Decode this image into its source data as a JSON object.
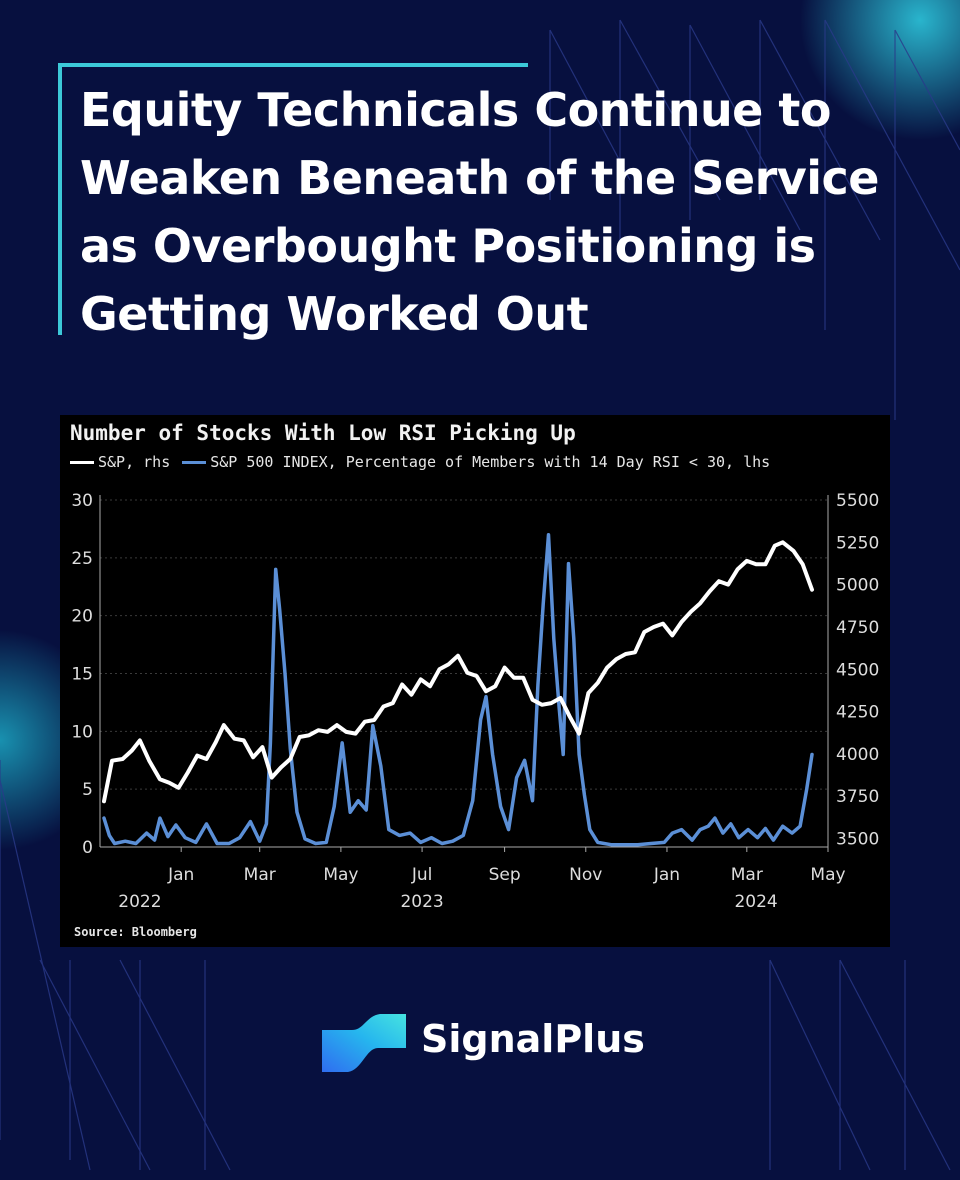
{
  "headline": "Equity Technicals Continue to Weaken Beneath of the Service as Overbought Positioning is Getting Worked Out",
  "brand": {
    "name": "SignalPlus",
    "logo_icon": "signalplus-wave-logo"
  },
  "colors": {
    "background": "#07103f",
    "accent": "#3cc9d8",
    "series_white": "#ffffff",
    "series_blue": "#5b8fd6"
  },
  "chart_data": {
    "type": "line",
    "title": "Number of Stocks With Low RSI Picking Up",
    "source": "Source: Bloomberg",
    "legend_placement": "top-left",
    "x_tick_labels": [
      "Jan",
      "Mar",
      "May",
      "Jul",
      "Sep",
      "Nov",
      "Jan",
      "Mar",
      "May"
    ],
    "x_tick_dates": [
      "2023-01-01",
      "2023-03-01",
      "2023-05-01",
      "2023-07-01",
      "2023-09-01",
      "2023-11-01",
      "2024-01-01",
      "2024-03-01",
      "2024-05-01"
    ],
    "year_labels": [
      {
        "label": "2022",
        "date": "2022-12-01"
      },
      {
        "label": "2023",
        "date": "2023-07-01"
      },
      {
        "label": "2024",
        "date": "2024-03-08"
      }
    ],
    "x_range": [
      "2022-11-01",
      "2024-05-01"
    ],
    "y_left": {
      "range": [
        0,
        30
      ],
      "ticks": [
        "0",
        "5",
        "10",
        "15",
        "20",
        "25",
        "30"
      ]
    },
    "y_right": {
      "range": [
        3450,
        5500
      ],
      "ticks": [
        "3500",
        "3750",
        "4000",
        "4250",
        "4500",
        "4750",
        "5000",
        "5250",
        "5500"
      ]
    },
    "series": [
      {
        "name": "S&P, rhs",
        "axis": "right",
        "color": "#ffffff",
        "points": [
          [
            "2022-11-04",
            3720
          ],
          [
            "2022-11-10",
            3960
          ],
          [
            "2022-11-18",
            3970
          ],
          [
            "2022-11-25",
            4020
          ],
          [
            "2022-12-01",
            4080
          ],
          [
            "2022-12-08",
            3960
          ],
          [
            "2022-12-16",
            3850
          ],
          [
            "2022-12-23",
            3830
          ],
          [
            "2022-12-30",
            3800
          ],
          [
            "2023-01-06",
            3890
          ],
          [
            "2023-01-13",
            3990
          ],
          [
            "2023-01-20",
            3970
          ],
          [
            "2023-01-27",
            4070
          ],
          [
            "2023-02-02",
            4170
          ],
          [
            "2023-02-10",
            4090
          ],
          [
            "2023-02-17",
            4080
          ],
          [
            "2023-02-24",
            3980
          ],
          [
            "2023-03-03",
            4040
          ],
          [
            "2023-03-10",
            3860
          ],
          [
            "2023-03-17",
            3920
          ],
          [
            "2023-03-24",
            3970
          ],
          [
            "2023-03-31",
            4100
          ],
          [
            "2023-04-07",
            4110
          ],
          [
            "2023-04-14",
            4140
          ],
          [
            "2023-04-21",
            4130
          ],
          [
            "2023-04-28",
            4170
          ],
          [
            "2023-05-05",
            4130
          ],
          [
            "2023-05-12",
            4120
          ],
          [
            "2023-05-19",
            4190
          ],
          [
            "2023-05-26",
            4200
          ],
          [
            "2023-06-02",
            4280
          ],
          [
            "2023-06-09",
            4300
          ],
          [
            "2023-06-16",
            4410
          ],
          [
            "2023-06-23",
            4350
          ],
          [
            "2023-06-30",
            4440
          ],
          [
            "2023-07-07",
            4400
          ],
          [
            "2023-07-14",
            4500
          ],
          [
            "2023-07-21",
            4530
          ],
          [
            "2023-07-28",
            4580
          ],
          [
            "2023-08-04",
            4480
          ],
          [
            "2023-08-11",
            4460
          ],
          [
            "2023-08-18",
            4370
          ],
          [
            "2023-08-25",
            4400
          ],
          [
            "2023-09-01",
            4510
          ],
          [
            "2023-09-08",
            4450
          ],
          [
            "2023-09-15",
            4450
          ],
          [
            "2023-09-22",
            4320
          ],
          [
            "2023-09-29",
            4290
          ],
          [
            "2023-10-06",
            4300
          ],
          [
            "2023-10-13",
            4330
          ],
          [
            "2023-10-20",
            4220
          ],
          [
            "2023-10-27",
            4120
          ],
          [
            "2023-11-03",
            4360
          ],
          [
            "2023-11-10",
            4420
          ],
          [
            "2023-11-17",
            4510
          ],
          [
            "2023-11-24",
            4560
          ],
          [
            "2023-12-01",
            4590
          ],
          [
            "2023-12-08",
            4600
          ],
          [
            "2023-12-15",
            4720
          ],
          [
            "2023-12-22",
            4750
          ],
          [
            "2023-12-29",
            4770
          ],
          [
            "2024-01-05",
            4700
          ],
          [
            "2024-01-12",
            4780
          ],
          [
            "2024-01-19",
            4840
          ],
          [
            "2024-01-26",
            4890
          ],
          [
            "2024-02-02",
            4960
          ],
          [
            "2024-02-09",
            5020
          ],
          [
            "2024-02-16",
            5000
          ],
          [
            "2024-02-23",
            5090
          ],
          [
            "2024-03-01",
            5140
          ],
          [
            "2024-03-08",
            5120
          ],
          [
            "2024-03-15",
            5120
          ],
          [
            "2024-03-22",
            5230
          ],
          [
            "2024-03-28",
            5250
          ],
          [
            "2024-04-05",
            5200
          ],
          [
            "2024-04-12",
            5120
          ],
          [
            "2024-04-19",
            4970
          ]
        ]
      },
      {
        "name": "S&P 500 INDEX, Percentage of Members with 14 Day RSI < 30, lhs",
        "axis": "left",
        "color": "#5b8fd6",
        "points": [
          [
            "2022-11-04",
            2.5
          ],
          [
            "2022-11-08",
            1.0
          ],
          [
            "2022-11-12",
            0.3
          ],
          [
            "2022-11-20",
            0.5
          ],
          [
            "2022-11-28",
            0.3
          ],
          [
            "2022-12-06",
            1.2
          ],
          [
            "2022-12-12",
            0.6
          ],
          [
            "2022-12-16",
            2.5
          ],
          [
            "2022-12-22",
            0.9
          ],
          [
            "2022-12-28",
            1.9
          ],
          [
            "2023-01-04",
            0.8
          ],
          [
            "2023-01-12",
            0.4
          ],
          [
            "2023-01-20",
            2.0
          ],
          [
            "2023-01-28",
            0.3
          ],
          [
            "2023-02-06",
            0.3
          ],
          [
            "2023-02-14",
            0.8
          ],
          [
            "2023-02-22",
            2.2
          ],
          [
            "2023-03-01",
            0.5
          ],
          [
            "2023-03-06",
            2.0
          ],
          [
            "2023-03-09",
            9.0
          ],
          [
            "2023-03-13",
            24.0
          ],
          [
            "2023-03-16",
            20.5
          ],
          [
            "2023-03-20",
            15.0
          ],
          [
            "2023-03-24",
            8.5
          ],
          [
            "2023-03-29",
            3.0
          ],
          [
            "2023-04-04",
            0.7
          ],
          [
            "2023-04-12",
            0.3
          ],
          [
            "2023-04-20",
            0.4
          ],
          [
            "2023-04-26",
            3.5
          ],
          [
            "2023-05-02",
            9.0
          ],
          [
            "2023-05-08",
            3.0
          ],
          [
            "2023-05-14",
            4.0
          ],
          [
            "2023-05-20",
            3.2
          ],
          [
            "2023-05-25",
            10.5
          ],
          [
            "2023-05-31",
            7.0
          ],
          [
            "2023-06-06",
            1.5
          ],
          [
            "2023-06-14",
            1.0
          ],
          [
            "2023-06-22",
            1.2
          ],
          [
            "2023-06-30",
            0.4
          ],
          [
            "2023-07-08",
            0.8
          ],
          [
            "2023-07-16",
            0.3
          ],
          [
            "2023-07-24",
            0.5
          ],
          [
            "2023-08-01",
            1.0
          ],
          [
            "2023-08-08",
            4.0
          ],
          [
            "2023-08-14",
            11.0
          ],
          [
            "2023-08-18",
            13.0
          ],
          [
            "2023-08-23",
            8.0
          ],
          [
            "2023-08-29",
            3.5
          ],
          [
            "2023-09-04",
            1.5
          ],
          [
            "2023-09-10",
            6.0
          ],
          [
            "2023-09-16",
            7.5
          ],
          [
            "2023-09-22",
            4.0
          ],
          [
            "2023-09-26",
            14.0
          ],
          [
            "2023-09-30",
            21.0
          ],
          [
            "2023-10-04",
            27.0
          ],
          [
            "2023-10-08",
            18.0
          ],
          [
            "2023-10-12",
            12.0
          ],
          [
            "2023-10-15",
            8.0
          ],
          [
            "2023-10-19",
            24.5
          ],
          [
            "2023-10-23",
            18.0
          ],
          [
            "2023-10-27",
            8.0
          ],
          [
            "2023-10-31",
            4.5
          ],
          [
            "2023-11-04",
            1.5
          ],
          [
            "2023-11-10",
            0.4
          ],
          [
            "2023-11-20",
            0.2
          ],
          [
            "2023-12-01",
            0.2
          ],
          [
            "2023-12-10",
            0.2
          ],
          [
            "2023-12-20",
            0.3
          ],
          [
            "2023-12-30",
            0.4
          ],
          [
            "2024-01-05",
            1.2
          ],
          [
            "2024-01-12",
            1.5
          ],
          [
            "2024-01-20",
            0.6
          ],
          [
            "2024-01-26",
            1.5
          ],
          [
            "2024-02-01",
            1.8
          ],
          [
            "2024-02-06",
            2.5
          ],
          [
            "2024-02-12",
            1.2
          ],
          [
            "2024-02-18",
            2.0
          ],
          [
            "2024-02-24",
            0.8
          ],
          [
            "2024-03-02",
            1.5
          ],
          [
            "2024-03-09",
            0.8
          ],
          [
            "2024-03-15",
            1.6
          ],
          [
            "2024-03-21",
            0.6
          ],
          [
            "2024-03-28",
            1.8
          ],
          [
            "2024-04-04",
            1.2
          ],
          [
            "2024-04-10",
            1.8
          ],
          [
            "2024-04-15",
            5.0
          ],
          [
            "2024-04-19",
            8.0
          ]
        ]
      }
    ]
  }
}
